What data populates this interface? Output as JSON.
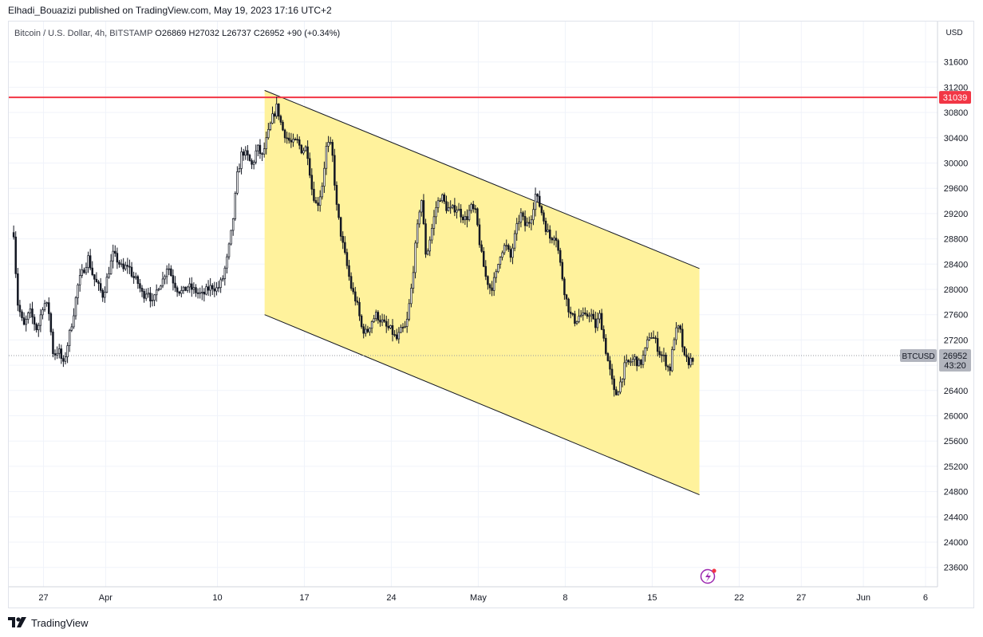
{
  "header": {
    "publisher_line": "Elhadi_Bouazizi published on TradingView.com, May 19, 2023 17:16 UTC+2"
  },
  "footer": {
    "brand": "TradingView"
  },
  "chart_data": {
    "type": "candlestick",
    "symbol_title": "Bitcoin / U.S. Dollar, 4h, BITSTAMP",
    "ohlc": {
      "open_label": "O",
      "open": "26869",
      "high_label": "H",
      "high": "27032",
      "low_label": "L",
      "low": "26737",
      "close_label": "C",
      "close": "26952",
      "change": "+90 (+0.34%)"
    },
    "currency": "USD",
    "ylim": [
      23200,
      31900
    ],
    "y_ticks": [
      23600,
      24000,
      24400,
      24800,
      25200,
      25600,
      26000,
      26400,
      26800,
      27200,
      27600,
      28000,
      28400,
      28800,
      29200,
      29600,
      30000,
      30400,
      30800,
      31200,
      31600
    ],
    "x_ticks": [
      {
        "label": "27",
        "day": 0
      },
      {
        "label": "Apr",
        "day": 5
      },
      {
        "label": "10",
        "day": 14
      },
      {
        "label": "17",
        "day": 21
      },
      {
        "label": "24",
        "day": 28
      },
      {
        "label": "May",
        "day": 35
      },
      {
        "label": "8",
        "day": 42
      },
      {
        "label": "15",
        "day": 49
      },
      {
        "label": "22",
        "day": 56
      },
      {
        "label": "27",
        "day": 61
      },
      {
        "label": "Jun",
        "day": 66
      },
      {
        "label": "6",
        "day": 71
      }
    ],
    "x_axis_note": "day index 0 = Mar 27, 2023",
    "horizontal_line": {
      "price": 31039,
      "label": "31039",
      "color": "#f23645"
    },
    "last_price": {
      "symbol": "BTCUSD",
      "price": 26952,
      "label": "26952",
      "countdown": "43:20"
    },
    "channel": {
      "fill": "#fff29c",
      "upper": [
        [
          17.8,
          31150
        ],
        [
          52.8,
          28330
        ]
      ],
      "lower": [
        [
          17.8,
          27600
        ],
        [
          52.8,
          24750
        ]
      ]
    },
    "candle_color": "#131722",
    "close_path": [
      [
        -2.4,
        28900
      ],
      [
        -2.1,
        27800
      ],
      [
        -1.6,
        27400
      ],
      [
        -1.1,
        27650
      ],
      [
        -0.5,
        27350
      ],
      [
        0.0,
        27800
      ],
      [
        0.4,
        27700
      ],
      [
        0.8,
        26950
      ],
      [
        1.2,
        27050
      ],
      [
        1.6,
        26800
      ],
      [
        2.0,
        27200
      ],
      [
        2.4,
        27600
      ],
      [
        2.8,
        28100
      ],
      [
        3.2,
        28300
      ],
      [
        3.6,
        28500
      ],
      [
        4.0,
        28200
      ],
      [
        4.4,
        28050
      ],
      [
        4.8,
        27900
      ],
      [
        5.2,
        28250
      ],
      [
        5.6,
        28550
      ],
      [
        6.0,
        28450
      ],
      [
        6.4,
        28300
      ],
      [
        6.8,
        28400
      ],
      [
        7.2,
        28200
      ],
      [
        7.6,
        28100
      ],
      [
        8.0,
        27900
      ],
      [
        8.4,
        28000
      ],
      [
        8.8,
        27750
      ],
      [
        9.2,
        28050
      ],
      [
        9.6,
        28150
      ],
      [
        10.0,
        28400
      ],
      [
        10.4,
        28150
      ],
      [
        10.8,
        28000
      ],
      [
        11.2,
        27950
      ],
      [
        11.6,
        28050
      ],
      [
        12.0,
        28000
      ],
      [
        12.4,
        27950
      ],
      [
        12.8,
        27900
      ],
      [
        13.2,
        28000
      ],
      [
        13.6,
        28050
      ],
      [
        14.0,
        28000
      ],
      [
        14.4,
        28150
      ],
      [
        14.8,
        28500
      ],
      [
        15.2,
        29000
      ],
      [
        15.6,
        29800
      ],
      [
        16.0,
        30200
      ],
      [
        16.4,
        30100
      ],
      [
        16.8,
        29950
      ],
      [
        17.2,
        30250
      ],
      [
        17.6,
        30100
      ],
      [
        18.0,
        30400
      ],
      [
        18.4,
        30700
      ],
      [
        18.8,
        30900
      ],
      [
        19.2,
        30550
      ],
      [
        19.6,
        30400
      ],
      [
        20.0,
        30300
      ],
      [
        20.4,
        30350
      ],
      [
        20.8,
        30200
      ],
      [
        21.2,
        30250
      ],
      [
        21.6,
        29600
      ],
      [
        22.0,
        29300
      ],
      [
        22.4,
        29600
      ],
      [
        22.8,
        30300
      ],
      [
        23.2,
        30250
      ],
      [
        23.6,
        29300
      ],
      [
        24.0,
        28800
      ],
      [
        24.4,
        28400
      ],
      [
        24.8,
        28000
      ],
      [
        25.2,
        27800
      ],
      [
        25.6,
        27400
      ],
      [
        26.0,
        27300
      ],
      [
        26.4,
        27500
      ],
      [
        26.8,
        27600
      ],
      [
        27.2,
        27500
      ],
      [
        27.6,
        27400
      ],
      [
        28.0,
        27350
      ],
      [
        28.4,
        27200
      ],
      [
        28.8,
        27350
      ],
      [
        29.2,
        27400
      ],
      [
        29.6,
        28000
      ],
      [
        30.0,
        28800
      ],
      [
        30.4,
        29500
      ],
      [
        30.8,
        28500
      ],
      [
        31.2,
        28900
      ],
      [
        31.6,
        29300
      ],
      [
        32.0,
        29500
      ],
      [
        32.4,
        29300
      ],
      [
        32.8,
        29250
      ],
      [
        33.2,
        29300
      ],
      [
        33.6,
        29200
      ],
      [
        34.0,
        29100
      ],
      [
        34.4,
        29300
      ],
      [
        34.8,
        29200
      ],
      [
        35.2,
        28600
      ],
      [
        35.6,
        28200
      ],
      [
        36.0,
        28000
      ],
      [
        36.4,
        28200
      ],
      [
        36.8,
        28600
      ],
      [
        37.2,
        28700
      ],
      [
        37.6,
        28500
      ],
      [
        38.0,
        28900
      ],
      [
        38.4,
        29200
      ],
      [
        38.8,
        29000
      ],
      [
        39.2,
        29100
      ],
      [
        39.6,
        29500
      ],
      [
        40.0,
        29300
      ],
      [
        40.4,
        29000
      ],
      [
        40.8,
        28800
      ],
      [
        41.2,
        28900
      ],
      [
        41.6,
        28400
      ],
      [
        42.0,
        27900
      ],
      [
        42.4,
        27600
      ],
      [
        42.8,
        27500
      ],
      [
        43.2,
        27600
      ],
      [
        43.6,
        27550
      ],
      [
        44.0,
        27650
      ],
      [
        44.4,
        27400
      ],
      [
        44.8,
        27600
      ],
      [
        45.2,
        27100
      ],
      [
        45.6,
        26700
      ],
      [
        46.0,
        26300
      ],
      [
        46.4,
        26500
      ],
      [
        46.8,
        26800
      ],
      [
        47.2,
        26850
      ],
      [
        47.6,
        26900
      ],
      [
        48.0,
        26800
      ],
      [
        48.4,
        27000
      ],
      [
        48.8,
        27300
      ],
      [
        49.2,
        27200
      ],
      [
        49.6,
        27000
      ],
      [
        50.0,
        26900
      ],
      [
        50.4,
        26700
      ],
      [
        50.8,
        27300
      ],
      [
        51.2,
        27400
      ],
      [
        51.6,
        26900
      ],
      [
        52.0,
        26850
      ],
      [
        52.4,
        26952
      ]
    ]
  }
}
